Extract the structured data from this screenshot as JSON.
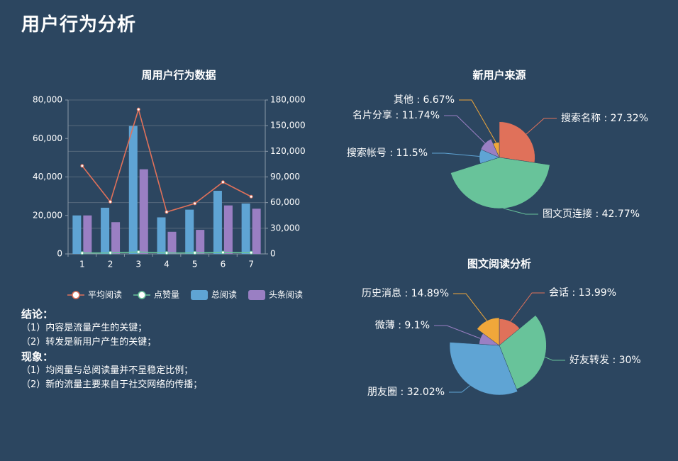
{
  "page": {
    "title": "用户行为分析"
  },
  "chart_data": [
    {
      "type": "bar",
      "title": "周用户行为数据",
      "categories": [
        "1",
        "2",
        "3",
        "4",
        "5",
        "6",
        "7"
      ],
      "y_left": {
        "ticks": [
          "0",
          "20,000",
          "40,000",
          "60,000",
          "80,000"
        ],
        "ylim": [
          0,
          80000
        ]
      },
      "y_right": {
        "ticks": [
          "0",
          "30,000",
          "60,000",
          "90,000",
          "120,000",
          "150,000",
          "180,000"
        ],
        "ylim": [
          0,
          180000
        ]
      },
      "legend": [
        "平均阅读",
        "点赞量",
        "总阅读",
        "头条阅读"
      ],
      "series": [
        {
          "name": "总阅读",
          "kind": "bar",
          "axis": "left",
          "color": "#5fa4d4",
          "values": [
            20000,
            24000,
            66500,
            19000,
            23000,
            32800,
            26200
          ]
        },
        {
          "name": "头条阅读",
          "kind": "bar",
          "axis": "left",
          "color": "#9a7fc3",
          "values": [
            20000,
            16500,
            44000,
            11500,
            12500,
            25200,
            23500
          ]
        },
        {
          "name": "平均阅读",
          "kind": "line",
          "axis": "right",
          "color": "#e0715a",
          "values": [
            103000,
            61000,
            169000,
            49000,
            59000,
            84000,
            67000
          ]
        },
        {
          "name": "点赞量",
          "kind": "line",
          "axis": "right",
          "color": "#68c39a",
          "values": [
            1000,
            1200,
            2200,
            1100,
            1200,
            1700,
            1400
          ]
        }
      ]
    },
    {
      "type": "pie",
      "subtype": "rose",
      "title": "新用户来源",
      "slices": [
        {
          "name": "搜索名称",
          "value": 27.32,
          "label": "搜索名称 : 27.32%",
          "color": "#e0715a"
        },
        {
          "name": "图文页连接",
          "value": 42.77,
          "label": "图文页连接 : 42.77%",
          "color": "#68c39a"
        },
        {
          "name": "搜索帐号",
          "value": 11.5,
          "label": "搜索帐号 : 11.5%",
          "color": "#5fa4d4"
        },
        {
          "name": "名片分享",
          "value": 11.74,
          "label": "名片分享 : 11.74%",
          "color": "#9a7fc3"
        },
        {
          "name": "其他",
          "value": 6.67,
          "label": "其他 : 6.67%",
          "color": "#f0a73a"
        }
      ]
    },
    {
      "type": "pie",
      "subtype": "rose",
      "title": "图文阅读分析",
      "slices": [
        {
          "name": "会话",
          "value": 13.99,
          "label": "会话 : 13.99%",
          "color": "#e0715a"
        },
        {
          "name": "好友转发",
          "value": 30,
          "label": "好友转发 : 30%",
          "color": "#68c39a"
        },
        {
          "name": "朋友圈",
          "value": 32.02,
          "label": "朋友圈 : 32.02%",
          "color": "#5fa4d4"
        },
        {
          "name": "微薄",
          "value": 9.1,
          "label": "微薄 : 9.1%",
          "color": "#9a7fc3"
        },
        {
          "name": "历史消息",
          "value": 14.89,
          "label": "历史消息 : 14.89%",
          "color": "#f0a73a"
        }
      ]
    }
  ],
  "notes": {
    "conclusion_title": "结论：",
    "conclusion_items": [
      "（1）内容是流量产生的关键；",
      "（2）转发是新用户产生的关键；"
    ],
    "observation_title": "现象：",
    "observation_items": [
      "（1）均阅量与总阅读量并不呈稳定比例；",
      "（2）新的流量主要来自于社交网络的传播；"
    ]
  },
  "colors": {
    "background": "#2c4660",
    "axis": "#8a99a8",
    "grid": "#56697b"
  }
}
